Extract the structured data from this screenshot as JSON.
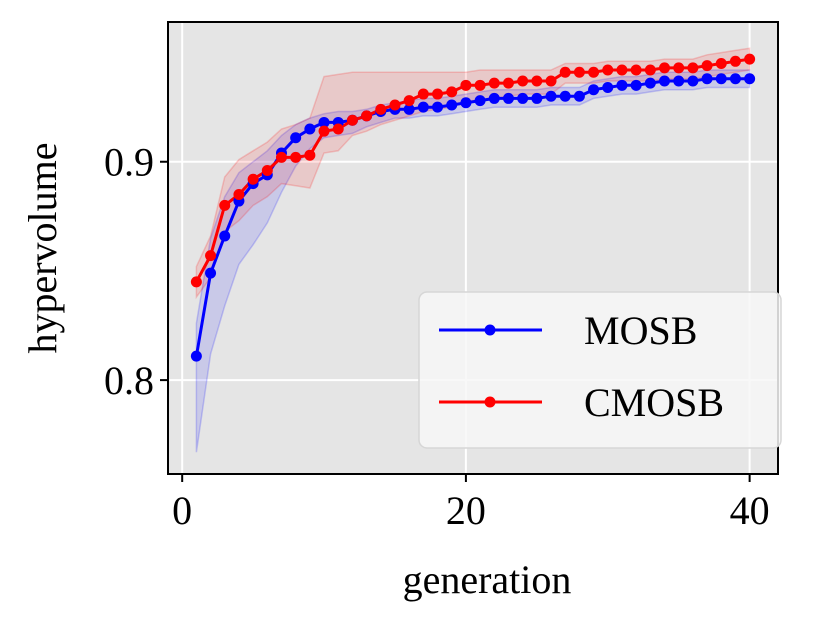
{
  "chart_data": {
    "type": "line",
    "title": "",
    "xlabel": "generation",
    "ylabel": "hypervolume",
    "xlim": [
      -1,
      42
    ],
    "ylim": [
      0.757,
      0.964
    ],
    "xticks": [
      0,
      20,
      40
    ],
    "xtick_labels": [
      "0",
      "20",
      "40"
    ],
    "yticks": [
      0.8,
      0.9
    ],
    "ytick_labels": [
      "0.8",
      "0.9"
    ],
    "grid": true,
    "background": "#e5e5e5",
    "legend_position": "lower-right",
    "x": [
      1,
      2,
      3,
      4,
      5,
      6,
      7,
      8,
      9,
      10,
      11,
      12,
      13,
      14,
      15,
      16,
      17,
      18,
      19,
      20,
      21,
      22,
      23,
      24,
      25,
      26,
      27,
      28,
      29,
      30,
      31,
      32,
      33,
      34,
      35,
      36,
      37,
      38,
      39,
      40
    ],
    "series": [
      {
        "name": "MOSB",
        "color": "#0000ff",
        "values": [
          0.811,
          0.849,
          0.866,
          0.882,
          0.89,
          0.894,
          0.904,
          0.911,
          0.915,
          0.918,
          0.918,
          0.919,
          0.921,
          0.923,
          0.924,
          0.924,
          0.925,
          0.925,
          0.926,
          0.927,
          0.928,
          0.929,
          0.929,
          0.929,
          0.929,
          0.93,
          0.93,
          0.93,
          0.933,
          0.934,
          0.935,
          0.935,
          0.936,
          0.937,
          0.937,
          0.937,
          0.938,
          0.938,
          0.938,
          0.938
        ],
        "band_upper": [
          0.826,
          0.865,
          0.884,
          0.895,
          0.9,
          0.905,
          0.912,
          0.917,
          0.92,
          0.922,
          0.923,
          0.923,
          0.924,
          0.926,
          0.927,
          0.928,
          0.929,
          0.929,
          0.93,
          0.931,
          0.932,
          0.933,
          0.933,
          0.933,
          0.933,
          0.934,
          0.934,
          0.934,
          0.937,
          0.938,
          0.939,
          0.939,
          0.94,
          0.941,
          0.941,
          0.941,
          0.942,
          0.942,
          0.942,
          0.942
        ],
        "band_lower": [
          0.767,
          0.812,
          0.834,
          0.853,
          0.862,
          0.872,
          0.886,
          0.898,
          0.906,
          0.911,
          0.912,
          0.913,
          0.916,
          0.918,
          0.92,
          0.92,
          0.921,
          0.921,
          0.922,
          0.923,
          0.924,
          0.925,
          0.925,
          0.925,
          0.925,
          0.926,
          0.926,
          0.926,
          0.929,
          0.93,
          0.931,
          0.931,
          0.932,
          0.933,
          0.933,
          0.933,
          0.934,
          0.934,
          0.934,
          0.934
        ]
      },
      {
        "name": "CMOSB",
        "color": "#ff0000",
        "values": [
          0.845,
          0.857,
          0.88,
          0.885,
          0.892,
          0.896,
          0.902,
          0.902,
          0.903,
          0.914,
          0.915,
          0.919,
          0.921,
          0.924,
          0.926,
          0.928,
          0.931,
          0.931,
          0.932,
          0.935,
          0.935,
          0.936,
          0.936,
          0.937,
          0.937,
          0.937,
          0.941,
          0.941,
          0.941,
          0.942,
          0.942,
          0.942,
          0.942,
          0.943,
          0.943,
          0.943,
          0.944,
          0.945,
          0.946,
          0.947
        ],
        "band_upper": [
          0.852,
          0.866,
          0.893,
          0.901,
          0.905,
          0.909,
          0.915,
          0.917,
          0.92,
          0.939,
          0.94,
          0.941,
          0.941,
          0.941,
          0.941,
          0.941,
          0.941,
          0.941,
          0.941,
          0.941,
          0.942,
          0.942,
          0.942,
          0.942,
          0.942,
          0.942,
          0.945,
          0.945,
          0.945,
          0.946,
          0.946,
          0.946,
          0.946,
          0.947,
          0.947,
          0.947,
          0.949,
          0.95,
          0.951,
          0.952
        ],
        "band_lower": [
          0.838,
          0.847,
          0.868,
          0.873,
          0.88,
          0.884,
          0.89,
          0.889,
          0.888,
          0.904,
          0.905,
          0.912,
          0.914,
          0.917,
          0.919,
          0.921,
          0.923,
          0.924,
          0.925,
          0.928,
          0.928,
          0.929,
          0.93,
          0.931,
          0.931,
          0.931,
          0.936,
          0.936,
          0.936,
          0.937,
          0.937,
          0.937,
          0.937,
          0.938,
          0.938,
          0.938,
          0.939,
          0.94,
          0.941,
          0.942
        ]
      }
    ]
  }
}
